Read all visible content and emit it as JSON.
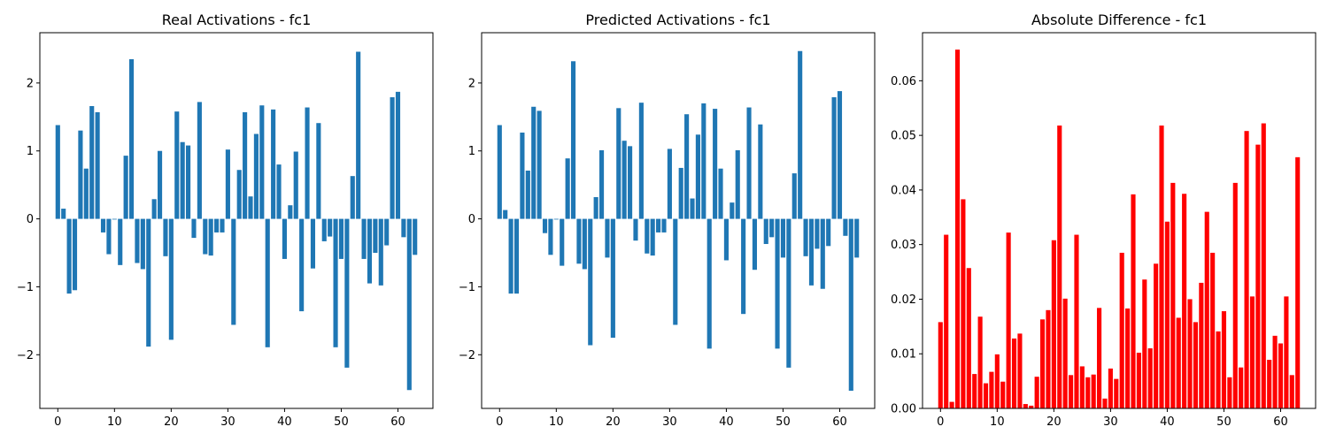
{
  "chart_data": [
    {
      "type": "bar",
      "title": "Real Activations - fc1",
      "color": "#1f77b4",
      "xlim": [
        -3.17,
        66.17
      ],
      "ylim": [
        -2.79,
        2.74
      ],
      "xticks": [
        0,
        10,
        20,
        30,
        40,
        50,
        60
      ],
      "yticks": [
        -2,
        -1,
        0,
        1,
        2
      ],
      "xlabel": "",
      "ylabel": "",
      "x": [
        0,
        1,
        2,
        3,
        4,
        5,
        6,
        7,
        8,
        9,
        10,
        11,
        12,
        13,
        14,
        15,
        16,
        17,
        18,
        19,
        20,
        21,
        22,
        23,
        24,
        25,
        26,
        27,
        28,
        29,
        30,
        31,
        32,
        33,
        34,
        35,
        36,
        37,
        38,
        39,
        40,
        41,
        42,
        43,
        44,
        45,
        46,
        47,
        48,
        49,
        50,
        51,
        52,
        53,
        54,
        55,
        56,
        57,
        58,
        59,
        60,
        61,
        62,
        63
      ],
      "values": [
        1.38,
        0.15,
        -1.1,
        -1.05,
        1.3,
        0.74,
        1.66,
        1.57,
        -0.2,
        -0.52,
        -0.01,
        -0.68,
        0.93,
        2.35,
        -0.65,
        -0.74,
        -1.88,
        0.29,
        1.0,
        -0.55,
        -1.78,
        1.58,
        1.13,
        1.08,
        -0.28,
        1.72,
        -0.52,
        -0.54,
        -0.2,
        -0.2,
        1.02,
        -1.56,
        0.72,
        1.57,
        0.33,
        1.25,
        1.67,
        -1.89,
        1.61,
        0.8,
        -0.59,
        0.2,
        0.99,
        -1.36,
        1.64,
        -0.73,
        1.41,
        -0.33,
        -0.26,
        -1.89,
        -0.59,
        -2.19,
        0.63,
        2.46,
        -0.59,
        -0.95,
        -0.5,
        -0.98,
        -0.39,
        1.79,
        1.87,
        -0.27,
        -2.52,
        -0.53
      ]
    },
    {
      "type": "bar",
      "title": "Predicted Activations - fc1",
      "color": "#1f77b4",
      "xlim": [
        -3.17,
        66.17
      ],
      "ylim": [
        -2.79,
        2.74
      ],
      "xticks": [
        0,
        10,
        20,
        30,
        40,
        50,
        60
      ],
      "yticks": [
        -2,
        -1,
        0,
        1,
        2
      ],
      "xlabel": "",
      "ylabel": "",
      "x": [
        0,
        1,
        2,
        3,
        4,
        5,
        6,
        7,
        8,
        9,
        10,
        11,
        12,
        13,
        14,
        15,
        16,
        17,
        18,
        19,
        20,
        21,
        22,
        23,
        24,
        25,
        26,
        27,
        28,
        29,
        30,
        31,
        32,
        33,
        34,
        35,
        36,
        37,
        38,
        39,
        40,
        41,
        42,
        43,
        44,
        45,
        46,
        47,
        48,
        49,
        50,
        51,
        52,
        53,
        54,
        55,
        56,
        57,
        58,
        59,
        60,
        61,
        62,
        63
      ],
      "values": [
        1.38,
        0.13,
        -1.1,
        -1.1,
        1.27,
        0.71,
        1.65,
        1.59,
        -0.21,
        -0.53,
        -0.01,
        -0.69,
        0.89,
        2.32,
        -0.66,
        -0.74,
        -1.86,
        0.32,
        1.01,
        -0.57,
        -1.75,
        1.63,
        1.15,
        1.07,
        -0.32,
        1.71,
        -0.51,
        -0.54,
        -0.2,
        -0.2,
        1.03,
        -1.56,
        0.75,
        1.54,
        0.3,
        1.24,
        1.7,
        -1.91,
        1.62,
        0.74,
        -0.61,
        0.24,
        1.01,
        -1.4,
        1.64,
        -0.75,
        1.39,
        -0.37,
        -0.27,
        -1.91,
        -0.57,
        -2.19,
        0.67,
        2.47,
        -0.55,
        -0.98,
        -0.44,
        -1.03,
        -0.4,
        1.79,
        1.88,
        -0.25,
        -2.53,
        -0.57
      ]
    },
    {
      "type": "bar",
      "title": "Absolute Difference - fc1",
      "color": "#ff0000",
      "xlim": [
        -3.17,
        66.17
      ],
      "ylim": [
        0,
        0.0688
      ],
      "xticks": [
        0,
        10,
        20,
        30,
        40,
        50,
        60
      ],
      "yticks": [
        0.0,
        0.01,
        0.02,
        0.03,
        0.04,
        0.05,
        0.06
      ],
      "ytick_labels": [
        "0.00",
        "0.01",
        "0.02",
        "0.03",
        "0.04",
        "0.05",
        "0.06"
      ],
      "xlabel": "",
      "ylabel": "",
      "x": [
        0,
        1,
        2,
        3,
        4,
        5,
        6,
        7,
        8,
        9,
        10,
        11,
        12,
        13,
        14,
        15,
        16,
        17,
        18,
        19,
        20,
        21,
        22,
        23,
        24,
        25,
        26,
        27,
        28,
        29,
        30,
        31,
        32,
        33,
        34,
        35,
        36,
        37,
        38,
        39,
        40,
        41,
        42,
        43,
        44,
        45,
        46,
        47,
        48,
        49,
        50,
        51,
        52,
        53,
        54,
        55,
        56,
        57,
        58,
        59,
        60,
        61,
        62,
        63
      ],
      "values": [
        0.0158,
        0.0318,
        0.0012,
        0.0657,
        0.0383,
        0.0257,
        0.0063,
        0.0168,
        0.0046,
        0.0067,
        0.0099,
        0.0049,
        0.0322,
        0.0128,
        0.0137,
        0.0008,
        0.0005,
        0.0058,
        0.0163,
        0.018,
        0.0308,
        0.0518,
        0.0201,
        0.0061,
        0.0318,
        0.0077,
        0.0057,
        0.0062,
        0.0184,
        0.0018,
        0.0073,
        0.0054,
        0.0285,
        0.0183,
        0.0392,
        0.0102,
        0.0236,
        0.011,
        0.0265,
        0.0518,
        0.0342,
        0.0413,
        0.0166,
        0.0393,
        0.02,
        0.0158,
        0.023,
        0.036,
        0.0285,
        0.0141,
        0.0178,
        0.0057,
        0.0413,
        0.0075,
        0.0508,
        0.0205,
        0.0483,
        0.0522,
        0.0089,
        0.0133,
        0.0119,
        0.0205,
        0.0061,
        0.046
      ]
    }
  ]
}
